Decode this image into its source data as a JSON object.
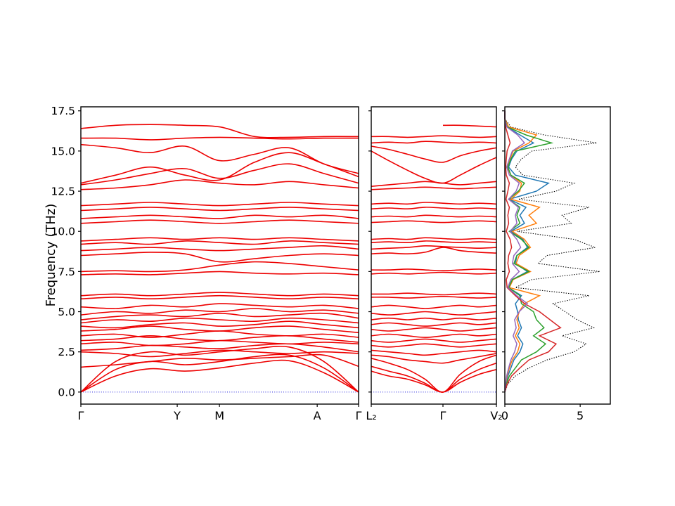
{
  "axis": {
    "ylabel": "Frequency (THz)"
  },
  "chart_data": [
    {
      "type": "line",
      "panel": "band-structure-main",
      "xlabel": "",
      "ylabel": "Frequency (THz)",
      "ylim": [
        -0.75,
        17.75
      ],
      "yticks": [
        0.0,
        2.5,
        5.0,
        7.5,
        10.0,
        12.5,
        15.0,
        17.5
      ],
      "ytick_labels": [
        "0.0",
        "2.5",
        "5.0",
        "7.5",
        "10.0",
        "12.5",
        "15.0",
        "17.5"
      ],
      "xtick_pos": [
        0,
        0.347,
        0.499,
        0.851,
        1.0
      ],
      "xtick_labels": [
        "Γ",
        "Y",
        "M",
        "A",
        "Γ"
      ],
      "band_color": "#ed0000",
      "zero_line": "#2424dd",
      "x": [
        0,
        0.125,
        0.25,
        0.375,
        0.5,
        0.625,
        0.75,
        0.875,
        1
      ],
      "bands": [
        [
          0.0,
          1.0,
          1.45,
          1.3,
          1.5,
          1.8,
          1.95,
          1.2,
          0.0
        ],
        [
          0.0,
          1.4,
          1.9,
          1.7,
          1.9,
          2.2,
          2.3,
          1.5,
          0.0
        ],
        [
          0.0,
          1.9,
          2.5,
          2.3,
          2.5,
          2.7,
          2.8,
          1.9,
          0.0
        ],
        [
          1.55,
          1.7,
          1.9,
          2.1,
          2.0,
          2.1,
          2.2,
          2.3,
          1.6
        ],
        [
          2.5,
          2.4,
          2.2,
          2.4,
          2.6,
          2.5,
          2.4,
          2.5,
          2.4
        ],
        [
          2.6,
          2.7,
          2.9,
          2.8,
          2.7,
          2.9,
          3.0,
          2.8,
          2.5
        ],
        [
          3.0,
          3.1,
          2.9,
          3.0,
          3.2,
          3.1,
          3.0,
          3.1,
          3.0
        ],
        [
          3.2,
          3.3,
          3.5,
          3.3,
          3.2,
          3.4,
          3.5,
          3.3,
          3.1
        ],
        [
          3.5,
          3.6,
          3.4,
          3.6,
          3.8,
          3.6,
          3.5,
          3.6,
          3.4
        ],
        [
          3.8,
          3.9,
          4.1,
          3.9,
          3.8,
          4.0,
          4.1,
          3.9,
          3.7
        ],
        [
          4.1,
          4.0,
          4.2,
          4.3,
          4.1,
          4.2,
          4.4,
          4.2,
          4.0
        ],
        [
          4.3,
          4.5,
          4.4,
          4.6,
          4.5,
          4.4,
          4.6,
          4.5,
          4.3
        ],
        [
          4.5,
          4.7,
          4.8,
          4.7,
          4.9,
          4.7,
          4.8,
          4.9,
          4.6
        ],
        [
          4.8,
          5.0,
          4.9,
          5.1,
          5.0,
          5.2,
          5.0,
          5.1,
          4.9
        ],
        [
          5.3,
          5.2,
          5.4,
          5.3,
          5.5,
          5.4,
          5.3,
          5.4,
          5.2
        ],
        [
          5.8,
          5.9,
          5.8,
          5.9,
          6.0,
          5.9,
          5.8,
          5.9,
          5.8
        ],
        [
          6.0,
          6.1,
          6.0,
          6.1,
          6.2,
          6.1,
          6.0,
          6.1,
          6.0
        ],
        [
          7.3,
          7.35,
          7.3,
          7.4,
          7.5,
          7.4,
          7.35,
          7.4,
          7.3
        ],
        [
          7.5,
          7.55,
          7.5,
          7.6,
          7.9,
          8.1,
          8.0,
          7.8,
          7.6
        ],
        [
          8.5,
          8.6,
          8.7,
          8.6,
          8.1,
          8.3,
          8.5,
          8.6,
          8.5
        ],
        [
          8.8,
          8.9,
          9.0,
          8.9,
          8.8,
          8.9,
          9.0,
          9.1,
          8.9
        ],
        [
          9.2,
          9.3,
          9.2,
          9.4,
          9.3,
          9.2,
          9.4,
          9.3,
          9.2
        ],
        [
          9.4,
          9.5,
          9.6,
          9.5,
          9.6,
          9.5,
          9.6,
          9.5,
          9.4
        ],
        [
          10.5,
          10.6,
          10.7,
          10.6,
          10.5,
          10.6,
          10.7,
          10.6,
          10.5
        ],
        [
          10.8,
          10.9,
          11.0,
          10.9,
          10.8,
          11.0,
          10.9,
          11.0,
          10.8
        ],
        [
          11.3,
          11.4,
          11.5,
          11.4,
          11.3,
          11.4,
          11.5,
          11.4,
          11.3
        ],
        [
          11.6,
          11.7,
          11.8,
          11.7,
          11.6,
          11.7,
          11.8,
          11.7,
          11.6
        ],
        [
          12.6,
          12.7,
          12.9,
          13.2,
          13.0,
          12.9,
          13.1,
          12.9,
          12.7
        ],
        [
          12.9,
          13.2,
          13.6,
          13.9,
          13.3,
          13.8,
          14.2,
          13.6,
          13.0
        ],
        [
          13.0,
          13.5,
          14.0,
          13.5,
          13.2,
          14.3,
          14.9,
          14.2,
          13.4
        ],
        [
          15.4,
          15.2,
          14.9,
          15.3,
          14.4,
          14.8,
          15.2,
          14.2,
          13.6
        ],
        [
          15.8,
          15.8,
          15.7,
          15.8,
          15.85,
          15.8,
          15.75,
          15.8,
          15.8
        ],
        [
          16.4,
          16.6,
          16.65,
          16.6,
          16.5,
          15.9,
          15.85,
          15.9,
          15.9
        ]
      ]
    },
    {
      "type": "line",
      "panel": "band-structure-second-path",
      "xlabel": "",
      "ylim": [
        -0.75,
        17.75
      ],
      "xtick_pos": [
        0,
        0.573,
        1.0
      ],
      "xtick_labels": [
        "L₂",
        "Γ",
        "V₂"
      ],
      "band_color": "#ed0000",
      "zero_line": "#2424dd",
      "x": [
        0,
        0.14,
        0.29,
        0.43,
        0.573,
        0.71,
        0.86,
        1
      ],
      "bands": [
        [
          1.3,
          1.0,
          0.8,
          0.45,
          0.0,
          0.6,
          1.1,
          1.4
        ],
        [
          1.6,
          1.3,
          1.0,
          0.55,
          0.0,
          0.8,
          1.4,
          1.8
        ],
        [
          2.1,
          1.8,
          1.4,
          0.8,
          0.0,
          1.1,
          1.9,
          2.3
        ],
        [
          2.3,
          2.2,
          2.0,
          1.9,
          1.8,
          2.0,
          2.2,
          2.4
        ],
        [
          2.6,
          2.5,
          2.4,
          2.3,
          2.4,
          2.5,
          2.6,
          2.5
        ],
        [
          2.9,
          2.8,
          2.9,
          3.0,
          2.9,
          2.8,
          2.9,
          3.0
        ],
        [
          3.2,
          3.1,
          3.2,
          3.3,
          3.2,
          3.1,
          3.2,
          3.3
        ],
        [
          3.5,
          3.6,
          3.5,
          3.4,
          3.5,
          3.6,
          3.5,
          3.6
        ],
        [
          3.9,
          3.8,
          3.9,
          4.0,
          3.9,
          3.8,
          3.9,
          4.0
        ],
        [
          4.2,
          4.3,
          4.2,
          4.1,
          4.2,
          4.3,
          4.2,
          4.3
        ],
        [
          4.5,
          4.6,
          4.5,
          4.6,
          4.5,
          4.6,
          4.5,
          4.6
        ],
        [
          4.9,
          4.8,
          4.9,
          5.0,
          4.9,
          4.8,
          4.9,
          5.0
        ],
        [
          5.3,
          5.4,
          5.3,
          5.2,
          5.3,
          5.4,
          5.3,
          5.4
        ],
        [
          5.9,
          5.9,
          5.85,
          5.9,
          5.95,
          5.9,
          5.85,
          5.9
        ],
        [
          6.1,
          6.1,
          6.15,
          6.1,
          6.05,
          6.1,
          6.15,
          6.1
        ],
        [
          7.35,
          7.4,
          7.35,
          7.4,
          7.45,
          7.4,
          7.35,
          7.4
        ],
        [
          7.6,
          7.6,
          7.65,
          7.6,
          7.55,
          7.6,
          7.65,
          7.6
        ],
        [
          8.6,
          8.65,
          8.6,
          8.7,
          9.0,
          8.8,
          8.7,
          8.65
        ],
        [
          8.9,
          8.95,
          9.0,
          9.1,
          9.05,
          9.0,
          8.95,
          9.0
        ],
        [
          9.3,
          9.35,
          9.3,
          9.4,
          9.35,
          9.3,
          9.35,
          9.3
        ],
        [
          9.5,
          9.55,
          9.5,
          9.6,
          9.55,
          9.5,
          9.55,
          9.5
        ],
        [
          10.55,
          10.6,
          10.65,
          10.6,
          10.55,
          10.6,
          10.65,
          10.6
        ],
        [
          10.9,
          10.95,
          10.9,
          11.0,
          10.95,
          10.9,
          10.95,
          10.9
        ],
        [
          11.4,
          11.45,
          11.4,
          11.5,
          11.45,
          11.4,
          11.45,
          11.4
        ],
        [
          11.7,
          11.75,
          11.7,
          11.8,
          11.75,
          11.7,
          11.75,
          11.7
        ],
        [
          12.6,
          12.65,
          12.7,
          12.75,
          12.7,
          12.65,
          12.7,
          12.75
        ],
        [
          12.8,
          12.9,
          13.0,
          13.1,
          13.0,
          12.9,
          13.0,
          13.1
        ],
        [
          15.0,
          14.4,
          13.8,
          13.3,
          13.0,
          13.5,
          14.1,
          14.6
        ],
        [
          15.3,
          15.1,
          14.8,
          14.5,
          14.3,
          14.7,
          15.0,
          15.2
        ],
        [
          15.5,
          15.55,
          15.5,
          15.6,
          15.55,
          15.5,
          15.55,
          15.5
        ],
        [
          15.9,
          15.9,
          15.85,
          15.9,
          15.95,
          15.9,
          15.85,
          15.9
        ],
        [
          null,
          null,
          null,
          null,
          16.6,
          16.6,
          16.55,
          16.5
        ]
      ]
    },
    {
      "type": "line",
      "panel": "density-of-states",
      "xlim": [
        0,
        7
      ],
      "ylim": [
        -0.75,
        17.75
      ],
      "xtick_pos": [
        0,
        5
      ],
      "xtick_labels": [
        "0",
        "5"
      ],
      "zero_line": null,
      "freq": [
        0,
        0.5,
        1,
        1.5,
        2,
        2.5,
        3,
        3.5,
        4,
        4.5,
        5,
        5.5,
        6,
        6.5,
        7,
        7.5,
        8,
        8.5,
        9,
        9.5,
        10,
        10.5,
        11,
        11.5,
        12,
        12.5,
        13,
        13.5,
        14,
        14.5,
        15,
        15.5,
        16,
        16.5,
        17,
        17.5
      ],
      "series": [
        {
          "name": "total",
          "color": "#000000",
          "dotted": true,
          "values": [
            0,
            0.2,
            0.7,
            1.6,
            2.8,
            4.6,
            5.4,
            3.8,
            5.9,
            4.8,
            4.0,
            3.2,
            5.6,
            0.7,
            1.8,
            6.3,
            2.2,
            2.8,
            6.0,
            4.6,
            0.8,
            4.4,
            3.8,
            5.6,
            0.9,
            3.4,
            4.6,
            1.2,
            0.7,
            1.1,
            1.8,
            6.1,
            2.6,
            0.4,
            0,
            0
          ]
        },
        {
          "name": "pdos-blue",
          "color": "#1f77b4",
          "dotted": false,
          "values": [
            0,
            0.08,
            0.2,
            0.4,
            0.6,
            1.0,
            1.2,
            0.85,
            1.1,
            0.9,
            0.85,
            0.7,
            1.1,
            0.25,
            0.5,
            1.5,
            0.7,
            0.8,
            1.5,
            1.2,
            0.4,
            1.3,
            1.0,
            1.4,
            0.3,
            2.1,
            2.9,
            0.7,
            0.25,
            0.45,
            0.8,
            1.9,
            1.0,
            0.15,
            0,
            0
          ]
        },
        {
          "name": "pdos-orange",
          "color": "#ff7f0e",
          "dotted": false,
          "values": [
            0,
            0.06,
            0.15,
            0.3,
            0.5,
            0.85,
            1.0,
            0.7,
            0.95,
            0.8,
            0.95,
            1.3,
            2.3,
            0.3,
            0.55,
            1.7,
            0.75,
            0.95,
            1.7,
            1.3,
            0.5,
            2.1,
            1.6,
            2.3,
            0.4,
            1.0,
            1.1,
            0.4,
            0.15,
            0.35,
            0.55,
            1.6,
            2.1,
            0.25,
            0,
            0
          ]
        },
        {
          "name": "pdos-green",
          "color": "#2ca02c",
          "dotted": false,
          "values": [
            0,
            0.1,
            0.3,
            0.7,
            1.1,
            2.1,
            2.7,
            1.9,
            2.6,
            2.1,
            1.9,
            1.1,
            1.0,
            0.25,
            0.5,
            1.6,
            0.6,
            0.8,
            1.6,
            1.1,
            0.3,
            1.0,
            0.8,
            1.0,
            0.25,
            0.9,
            1.3,
            0.4,
            0.2,
            0.4,
            0.7,
            3.1,
            1.4,
            0.15,
            0,
            0
          ]
        },
        {
          "name": "pdos-red",
          "color": "#d62728",
          "dotted": false,
          "values": [
            0,
            0.15,
            0.45,
            1.0,
            1.6,
            2.9,
            3.4,
            2.3,
            3.7,
            3.0,
            2.3,
            1.3,
            0.7,
            0.15,
            0.1,
            0.3,
            0.2,
            0.25,
            0.45,
            0.35,
            0.1,
            0.25,
            0.2,
            0.3,
            0.08,
            0.2,
            0.3,
            0.1,
            0.05,
            0.1,
            0.15,
            0.35,
            0.2,
            0.05,
            0,
            0
          ]
        },
        {
          "name": "pdos-purple",
          "color": "#9467bd",
          "dotted": false,
          "values": [
            0,
            0.05,
            0.12,
            0.25,
            0.4,
            0.65,
            0.8,
            0.55,
            0.75,
            0.65,
            0.95,
            1.5,
            0.8,
            0.2,
            0.4,
            0.95,
            0.5,
            0.6,
            1.05,
            0.8,
            0.35,
            0.8,
            0.7,
            0.9,
            0.25,
            0.75,
            0.95,
            0.3,
            0.12,
            0.3,
            0.5,
            1.3,
            0.85,
            0.12,
            0,
            0
          ]
        }
      ]
    }
  ]
}
